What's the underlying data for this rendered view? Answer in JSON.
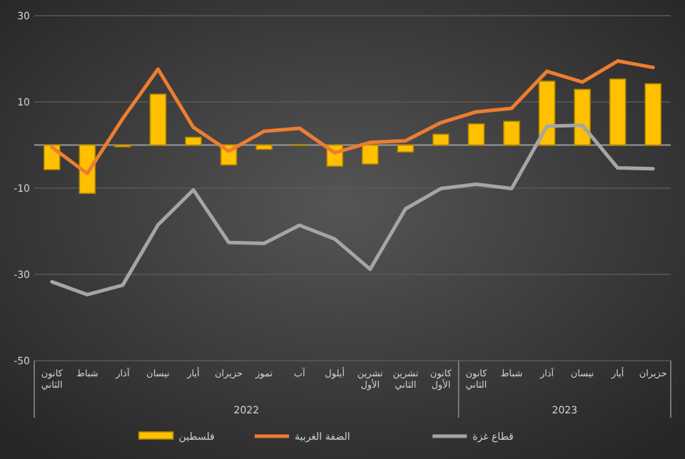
{
  "chart_data": {
    "type": "bar",
    "categories": [
      "كانون الثاني",
      "شباط",
      "آذار",
      "نيسان",
      "أيار",
      "حزيران",
      "تموز",
      "آب",
      "أيلول",
      "تشرين الأول",
      "تشرين الثاني",
      "كانون الأول",
      "كانون الثاني",
      "شباط",
      "آذار",
      "نيسان",
      "أيار",
      "حزيران"
    ],
    "series": [
      {
        "name": "فلسطين",
        "color": "#ffc000",
        "values": [
          -5.7,
          -11.2,
          -0.4,
          11.8,
          1.8,
          -4.6,
          -1,
          0.1,
          -4.9,
          -4.4,
          -1.6,
          2.5,
          4.9,
          5.5,
          14.8,
          12.9,
          15.3,
          14.2
        ]
      },
      {
        "name": "الضفة الغربية",
        "type": "line",
        "color": "#ed7d31",
        "values": [
          -0.5,
          -6.6,
          6.1,
          17.6,
          4.1,
          -1.4,
          3.2,
          3.9,
          -1.8,
          0.6,
          1.0,
          5.2,
          7.7,
          8.5,
          17.1,
          14.6,
          19.5,
          18.0
        ]
      },
      {
        "name": "قطاع غزة",
        "type": "line",
        "color": "#a5a5a5",
        "values": [
          -31.7,
          -34.7,
          -32.5,
          -18.5,
          -10.4,
          -22.6,
          -22.8,
          -18.6,
          -21.8,
          -28.8,
          -14.8,
          -10.1,
          -9.1,
          -10.1,
          4.4,
          4.6,
          -5.3,
          -5.5
        ]
      }
    ],
    "ylim": [
      -50,
      30
    ],
    "yticks": [
      -50,
      -30,
      -10,
      10,
      30
    ],
    "grid": "y",
    "legend": "bottom",
    "annotations": [
      "2022",
      "2023"
    ]
  }
}
